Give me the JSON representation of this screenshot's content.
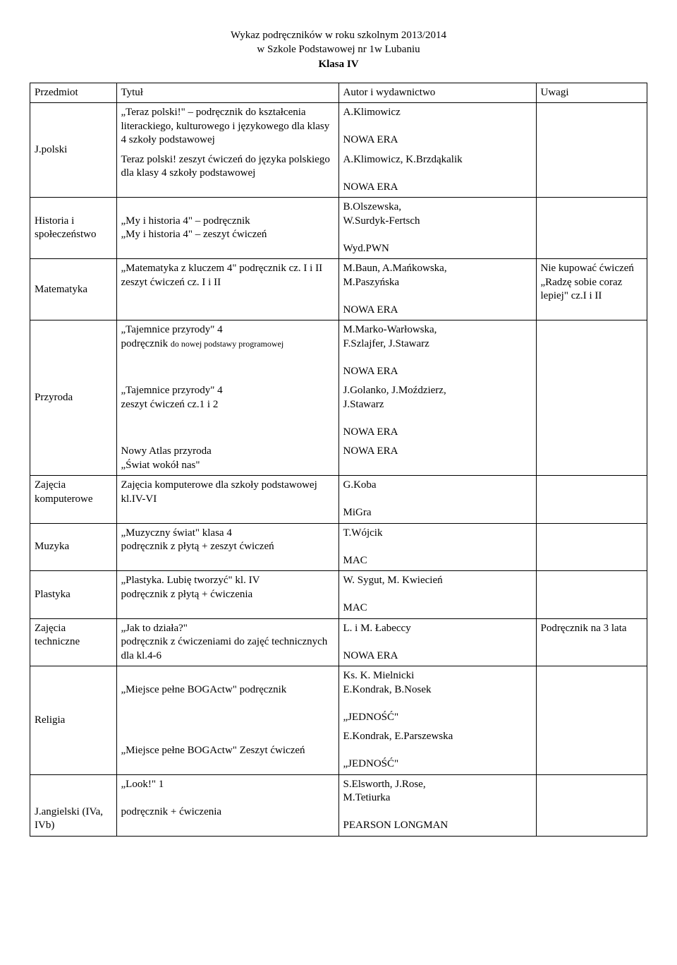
{
  "header": {
    "line1": "Wykaz podręczników w roku szkolnym 2013/2014",
    "line2": "w Szkole Podstawowej nr 1w Lubaniu",
    "line3_bold": "Klasa IV"
  },
  "table": {
    "columns": {
      "subject": "Przedmiot",
      "title": "Tytuł",
      "author": "Autor i wydawnictwo",
      "notes": "Uwagi"
    },
    "jpolski": {
      "subject": "J.polski",
      "r1_title": "„Teraz polski!\" – podręcznik do kształcenia literackiego, kulturowego i językowego dla klasy 4 szkoły podstawowej",
      "r1_author": "A.Klimowicz\n\nNOWA ERA",
      "r2_title": "Teraz polski! zeszyt ćwiczeń do języka polskiego dla klasy 4 szkoły podstawowej",
      "r2_author": "A.Klimowicz, K.Brzdąkalik\n\nNOWA ERA"
    },
    "historia": {
      "subject": "Historia i społeczeństwo",
      "title": "„My i historia 4\" – podręcznik\n„My i historia 4\" – zeszyt ćwiczeń",
      "author": "B.Olszewska,\nW.Surdyk-Fertsch\n\nWyd.PWN"
    },
    "matematyka": {
      "subject": "Matematyka",
      "title": "„Matematyka z kluczem 4\" podręcznik cz. I i II\nzeszyt ćwiczeń cz. I i II",
      "author": "M.Baun, A.Mańkowska,\nM.Paszyńska\n\nNOWA ERA",
      "notes": "Nie kupować ćwiczeń „Radzę sobie coraz lepiej\" cz.I i II"
    },
    "przyroda": {
      "subject": "Przyroda",
      "r1_title_a": "„Tajemnice przyrody\" 4\npodręcznik ",
      "r1_title_small": "do nowej podstawy programowej",
      "r1_author": "M.Marko-Warłowska,\nF.Szlajfer, J.Stawarz\n\nNOWA ERA",
      "r2_title": "„Tajemnice przyrody\" 4\nzeszyt ćwiczeń cz.1 i 2",
      "r2_author": "J.Golanko, J.Moździerz,\nJ.Stawarz\n\nNOWA ERA",
      "r3_title": "Nowy Atlas przyroda\n„Świat wokół nas\"",
      "r3_author": "NOWA ERA"
    },
    "komputerowe": {
      "subject": "Zajęcia komputerowe",
      "title": "Zajęcia komputerowe dla szkoły podstawowej kl.IV-VI",
      "author": "G.Koba\n\nMiGra"
    },
    "muzyka": {
      "subject": "Muzyka",
      "title": "„Muzyczny świat\" klasa 4\npodręcznik z płytą + zeszyt ćwiczeń",
      "author": "T.Wójcik\n\nMAC"
    },
    "plastyka": {
      "subject": "Plastyka",
      "title": "„Plastyka. Lubię tworzyć\" kl. IV\npodręcznik z płytą + ćwiczenia",
      "author": "W. Sygut, M. Kwiecień\n\nMAC"
    },
    "techniczne": {
      "subject": "Zajęcia techniczne",
      "title": "„Jak to działa?\"\npodręcznik z ćwiczeniami do zajęć technicznych dla kl.4-6",
      "author": "L. i M. Łabeccy\n\nNOWA ERA",
      "notes": "Podręcznik na 3 lata"
    },
    "religia": {
      "subject": "Religia",
      "r1_title": "„Miejsce pełne BOGActw\" podręcznik",
      "r1_author": "Ks. K. Mielnicki\nE.Kondrak, B.Nosek\n\n„JEDNOŚĆ\"",
      "r2_title": "„Miejsce pełne BOGActw\" Zeszyt ćwiczeń",
      "r2_author": "E.Kondrak, E.Parszewska\n\n„JEDNOŚĆ\""
    },
    "angielski": {
      "subject": "J.angielski (IVa, IVb)",
      "title": "„Look!\" 1\n\npodręcznik + ćwiczenia",
      "author": "S.Elsworth, J.Rose,\nM.Tetiurka\n\nPEARSON LONGMAN"
    }
  }
}
